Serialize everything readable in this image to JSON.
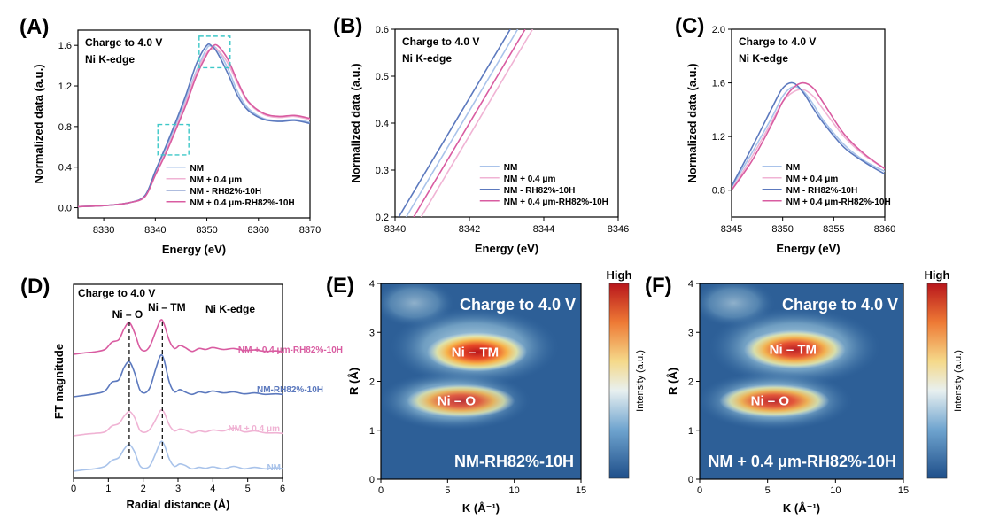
{
  "colors": {
    "NM": "#a9c3ea",
    "NM_04": "#f0b3d4",
    "NM_RH": "#5c79be",
    "NM_04_RH": "#d95ca1",
    "box": "#3ec8c8"
  },
  "inset": {
    "charge": "Charge to 4.0 V",
    "edge": "Ni K-edge"
  },
  "legend_labels": [
    "NM",
    "NM + 0.4 μm",
    "NM - RH82%-10H",
    "NM + 0.4 μm-RH82%-10H"
  ],
  "chart_data": [
    {
      "panel": "(A)",
      "type": "line",
      "xlabel": "Energy (eV)",
      "ylabel": "Normalized data (a.u.)",
      "xlim": [
        8325,
        8370
      ],
      "ylim": [
        -0.1,
        1.75
      ],
      "xticks": [
        8330,
        8340,
        8350,
        8360,
        8370
      ],
      "yticks": [
        0.0,
        0.4,
        0.8,
        1.2,
        1.6
      ],
      "series": [
        {
          "name": "NM",
          "x": [
            8325,
            8330,
            8335,
            8338,
            8340,
            8342,
            8344,
            8346,
            8348,
            8350,
            8351,
            8352,
            8354,
            8356,
            8358,
            8361,
            8364,
            8367,
            8370
          ],
          "y": [
            0.01,
            0.02,
            0.05,
            0.12,
            0.35,
            0.58,
            0.82,
            1.08,
            1.35,
            1.57,
            1.59,
            1.56,
            1.38,
            1.14,
            0.98,
            0.88,
            0.86,
            0.87,
            0.84
          ]
        },
        {
          "name": "NM + 0.4 μm",
          "x": [
            8325,
            8330,
            8335,
            8338,
            8340,
            8342,
            8344,
            8346,
            8348,
            8350,
            8351,
            8352,
            8354,
            8356,
            8358,
            8361,
            8364,
            8367,
            8370
          ],
          "y": [
            0.01,
            0.02,
            0.05,
            0.11,
            0.33,
            0.55,
            0.79,
            1.05,
            1.33,
            1.53,
            1.56,
            1.56,
            1.43,
            1.22,
            1.04,
            0.92,
            0.89,
            0.9,
            0.87
          ]
        },
        {
          "name": "NM - RH82%-10H",
          "x": [
            8325,
            8330,
            8335,
            8338,
            8340,
            8342,
            8344,
            8346,
            8348,
            8350,
            8351,
            8352,
            8354,
            8356,
            8358,
            8361,
            8364,
            8367,
            8370
          ],
          "y": [
            0.01,
            0.02,
            0.05,
            0.12,
            0.36,
            0.6,
            0.85,
            1.12,
            1.42,
            1.6,
            1.59,
            1.53,
            1.33,
            1.1,
            0.96,
            0.87,
            0.85,
            0.86,
            0.83
          ]
        },
        {
          "name": "NM + 0.4 μm-RH82%-10H",
          "x": [
            8325,
            8330,
            8335,
            8338,
            8340,
            8342,
            8344,
            8346,
            8348,
            8350,
            8351,
            8352,
            8354,
            8356,
            8358,
            8361,
            8364,
            8367,
            8370
          ],
          "y": [
            0.01,
            0.02,
            0.05,
            0.11,
            0.32,
            0.53,
            0.77,
            1.02,
            1.3,
            1.51,
            1.58,
            1.6,
            1.47,
            1.24,
            1.05,
            0.93,
            0.9,
            0.91,
            0.88
          ]
        }
      ],
      "annotations": "two dashed cyan boxes marking the edge region (~8342 eV) and white-line peak (~8351 eV)"
    },
    {
      "panel": "(B)",
      "type": "line",
      "xlabel": "Energy (eV)",
      "ylabel": "Normalized data (a.u.)",
      "xlim": [
        8340,
        8346
      ],
      "ylim": [
        0.2,
        0.6
      ],
      "xticks": [
        8340,
        8342,
        8344,
        8346
      ],
      "yticks": [
        0.2,
        0.3,
        0.4,
        0.5,
        0.6
      ],
      "series": [
        {
          "name": "NM",
          "x": [
            8340.3,
            8343.3
          ],
          "y": [
            0.2,
            0.6
          ]
        },
        {
          "name": "NM + 0.4 μm",
          "x": [
            8340.7,
            8343.7
          ],
          "y": [
            0.2,
            0.6
          ]
        },
        {
          "name": "NM - RH82%-10H",
          "x": [
            8340.1,
            8343.1
          ],
          "y": [
            0.2,
            0.6
          ]
        },
        {
          "name": "NM + 0.4 μm-RH82%-10H",
          "x": [
            8340.5,
            8343.5
          ],
          "y": [
            0.2,
            0.6
          ]
        }
      ]
    },
    {
      "panel": "(C)",
      "type": "line",
      "xlabel": "Energy (eV)",
      "ylabel": "Normalized data (a.u.)",
      "xlim": [
        8345,
        8360
      ],
      "ylim": [
        0.6,
        2.0
      ],
      "xticks": [
        8345,
        8350,
        8355,
        8360
      ],
      "yticks": [
        0.8,
        1.2,
        1.6,
        2.0
      ],
      "series": [
        {
          "name": "NM",
          "x": [
            8345,
            8347,
            8349,
            8350,
            8351,
            8352,
            8353,
            8354,
            8356,
            8358,
            8360
          ],
          "y": [
            0.82,
            1.08,
            1.35,
            1.5,
            1.57,
            1.54,
            1.44,
            1.32,
            1.14,
            1.02,
            0.94
          ]
        },
        {
          "name": "NM + 0.4 μm",
          "x": [
            8345,
            8347,
            8349,
            8350,
            8351,
            8352,
            8353,
            8354,
            8356,
            8358,
            8360
          ],
          "y": [
            0.8,
            1.05,
            1.32,
            1.46,
            1.53,
            1.55,
            1.5,
            1.4,
            1.2,
            1.06,
            0.96
          ]
        },
        {
          "name": "NM - RH82%-10H",
          "x": [
            8345,
            8347,
            8349,
            8350,
            8351,
            8352,
            8353,
            8354,
            8356,
            8358,
            8360
          ],
          "y": [
            0.83,
            1.12,
            1.42,
            1.56,
            1.6,
            1.53,
            1.41,
            1.3,
            1.12,
            1.01,
            0.92
          ]
        },
        {
          "name": "NM + 0.4 μm-RH82%-10H",
          "x": [
            8345,
            8347,
            8349,
            8350,
            8351,
            8352,
            8353,
            8354,
            8356,
            8358,
            8360
          ],
          "y": [
            0.8,
            1.02,
            1.3,
            1.46,
            1.56,
            1.6,
            1.56,
            1.45,
            1.22,
            1.07,
            0.96
          ]
        }
      ]
    },
    {
      "panel": "(D)",
      "type": "line",
      "xlabel": "Radial distance (Å)",
      "ylabel": "FT magnitude",
      "xlim": [
        0,
        6
      ],
      "xticks": [
        0,
        1,
        2,
        3,
        4,
        5,
        6
      ],
      "inset_charge": "Charge to 4.0 V",
      "inset_edge": "Ni K-edge",
      "peak_labels": [
        "Ni – O",
        "Ni – TM"
      ],
      "peak_positions": [
        1.6,
        2.55
      ],
      "series": [
        {
          "name": "NM",
          "label": "NM",
          "offset": 0.0
        },
        {
          "name": "NM + 0.4 μm",
          "label": "NM + 0.4 μm",
          "offset": 1.0
        },
        {
          "name": "NM-RH82%-10H",
          "label": "NM-RH82%-10H",
          "offset": 2.0
        },
        {
          "name": "NM + 0.4 μm-RH82%-10H",
          "label": "NM + 0.4 μm-RH82%-10H",
          "offset": 3.0
        }
      ],
      "r": [
        0,
        0.3,
        0.6,
        0.9,
        1.1,
        1.3,
        1.45,
        1.6,
        1.75,
        1.9,
        2.05,
        2.2,
        2.35,
        2.5,
        2.6,
        2.75,
        2.9,
        3.05,
        3.2,
        3.4,
        3.6,
        3.8,
        4.0,
        4.3,
        4.6,
        4.9,
        5.2,
        5.5,
        5.8,
        6.0
      ],
      "profiles": [
        [
          0.0,
          0.03,
          0.05,
          0.1,
          0.22,
          0.28,
          0.45,
          0.55,
          0.4,
          0.12,
          0.06,
          0.12,
          0.35,
          0.6,
          0.55,
          0.25,
          0.1,
          0.15,
          0.12,
          0.05,
          0.08,
          0.06,
          0.09,
          0.05,
          0.1,
          0.05,
          0.08,
          0.05,
          0.07,
          0.05
        ],
        [
          0.0,
          0.03,
          0.05,
          0.08,
          0.2,
          0.25,
          0.4,
          0.5,
          0.38,
          0.12,
          0.07,
          0.14,
          0.32,
          0.52,
          0.48,
          0.22,
          0.1,
          0.14,
          0.12,
          0.06,
          0.1,
          0.08,
          0.12,
          0.1,
          0.16,
          0.08,
          0.1,
          0.06,
          0.06,
          0.05
        ],
        [
          0.0,
          0.03,
          0.06,
          0.12,
          0.3,
          0.35,
          0.6,
          0.72,
          0.5,
          0.15,
          0.08,
          0.2,
          0.55,
          0.85,
          0.75,
          0.3,
          0.1,
          0.15,
          0.1,
          0.05,
          0.1,
          0.08,
          0.12,
          0.08,
          0.1,
          0.06,
          0.08,
          0.05,
          0.06,
          0.05
        ],
        [
          0.0,
          0.03,
          0.05,
          0.1,
          0.25,
          0.3,
          0.52,
          0.65,
          0.45,
          0.14,
          0.07,
          0.18,
          0.45,
          0.7,
          0.62,
          0.28,
          0.12,
          0.18,
          0.14,
          0.06,
          0.12,
          0.1,
          0.14,
          0.1,
          0.12,
          0.08,
          0.09,
          0.06,
          0.07,
          0.05
        ]
      ]
    },
    {
      "panel": "(E)",
      "type": "heatmap",
      "xlabel": "K (Å⁻¹)",
      "ylabel": "R (Å)",
      "xlim": [
        0,
        15
      ],
      "ylim": [
        0,
        4
      ],
      "xticks": [
        0,
        5,
        10,
        15
      ],
      "yticks": [
        0,
        1,
        2,
        3,
        4
      ],
      "title": "Charge to 4.0 V",
      "sample": "NM-RH82%-10H",
      "colorbar_label": "Intensity (a.u.)",
      "colorbar_high": "High",
      "lobes": [
        {
          "label": "Ni – TM",
          "k": 7.2,
          "r": 2.6,
          "intensity": 1.0
        },
        {
          "label": "Ni – O",
          "k": 6.0,
          "r": 1.6,
          "intensity": 0.85
        }
      ]
    },
    {
      "panel": "(F)",
      "type": "heatmap",
      "xlabel": "K (Å⁻¹)",
      "ylabel": "R (Å)",
      "xlim": [
        0,
        15
      ],
      "ylim": [
        0,
        4
      ],
      "xticks": [
        0,
        5,
        10,
        15
      ],
      "yticks": [
        0,
        1,
        2,
        3,
        4
      ],
      "title": "Charge to 4.0 V",
      "sample": "NM + 0.4 μm-RH82%-10H",
      "colorbar_label": "Intensity (a.u.)",
      "colorbar_high": "High",
      "lobes": [
        {
          "label": "Ni – TM",
          "k": 7.0,
          "r": 2.65,
          "intensity": 0.95
        },
        {
          "label": "Ni – O",
          "k": 5.5,
          "r": 1.6,
          "intensity": 0.9
        }
      ]
    }
  ]
}
